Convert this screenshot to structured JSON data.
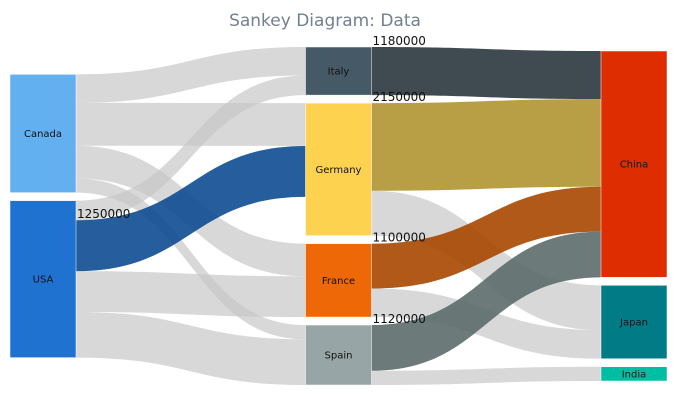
{
  "chart_data": {
    "type": "sankey",
    "title": "Sankey Diagram: Data",
    "nodes": [
      {
        "name": "Canada",
        "color": "#62b0f0"
      },
      {
        "name": "USA",
        "color": "#1f72d0"
      },
      {
        "name": "Italy",
        "color": "#465966"
      },
      {
        "name": "Germany",
        "color": "#fdd24f"
      },
      {
        "name": "France",
        "color": "#ee6807"
      },
      {
        "name": "Spain",
        "color": "#97a5a6"
      },
      {
        "name": "China",
        "color": "#de2d00"
      },
      {
        "name": "Japan",
        "color": "#017c87"
      },
      {
        "name": "India",
        "color": "#00bea2"
      }
    ],
    "links": [
      {
        "source": "Canada",
        "target": "Italy",
        "value": 700000
      },
      {
        "source": "Canada",
        "target": "Germany",
        "value": 1050000
      },
      {
        "source": "Canada",
        "target": "France",
        "value": 800000
      },
      {
        "source": "Canada",
        "target": "Spain",
        "value": 350000
      },
      {
        "source": "USA",
        "target": "Italy",
        "value": 480000
      },
      {
        "source": "USA",
        "target": "Germany",
        "value": 1250000,
        "label": "1250000",
        "color": "#0e4b92"
      },
      {
        "source": "USA",
        "target": "France",
        "value": 1000000
      },
      {
        "source": "USA",
        "target": "Spain",
        "value": 1120000
      },
      {
        "source": "Italy",
        "target": "China",
        "value": 1180000,
        "label": "1180000",
        "color": "#2a363e"
      },
      {
        "source": "Germany",
        "target": "China",
        "value": 2150000,
        "label": "2150000",
        "color": "#b09431"
      },
      {
        "source": "Germany",
        "target": "Japan",
        "value": 1100000
      },
      {
        "source": "France",
        "target": "China",
        "value": 1100000,
        "label": "1100000",
        "color": "#a74700"
      },
      {
        "source": "France",
        "target": "Japan",
        "value": 700000
      },
      {
        "source": "Spain",
        "target": "China",
        "value": 1120000,
        "label": "1120000",
        "color": "#5c6b6c"
      },
      {
        "source": "Spain",
        "target": "India",
        "value": 350000
      }
    ],
    "default_link_color": "#c8c8c8"
  }
}
